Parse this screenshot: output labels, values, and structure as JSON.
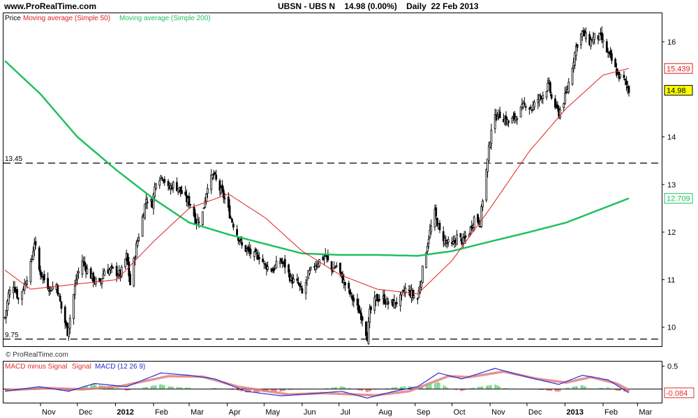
{
  "header": {
    "site": "www.ProRealTime.com",
    "instrument": "UBSN - UBS N",
    "last": "14.98 (0.00%)",
    "period": "Daily",
    "date": "22 Feb 2013"
  },
  "watermark": "© ProRealTime.com",
  "colors": {
    "candle": "#000000",
    "ma50": "#e02020",
    "ma200": "#20c060",
    "macd": "#2a2ad0",
    "signal": "#e08080",
    "hist_pos": "#2cc050",
    "hist_neg": "#e03030",
    "last_badge": "#ffff00"
  },
  "chart_data": {
    "type": "candlestick",
    "legend": {
      "price": "Price",
      "ma50": "Moving average (Simple 50)",
      "ma200": "Moving average (Simple 200)"
    },
    "ylim": [
      9.6,
      16.6
    ],
    "y_ticks": [
      10,
      11,
      12,
      13,
      14,
      16
    ],
    "x_ticks": [
      "Nov",
      "Dec",
      "2012",
      "Feb",
      "Mar",
      "Apr",
      "May",
      "Jun",
      "Jul",
      "Aug",
      "Sep",
      "Oct",
      "Nov",
      "Dec",
      "2013",
      "Feb",
      "Mar"
    ],
    "reference_lines": [
      {
        "value": 13.45,
        "label": "13.45"
      },
      {
        "value": 9.75,
        "label": "9.75"
      }
    ],
    "last_values": {
      "ma50": "15.439",
      "close": "14.98",
      "ma200": "12.709"
    },
    "close_anchors": [
      [
        "2011-10-03",
        10.2
      ],
      [
        "2011-10-06",
        10.7
      ],
      [
        "2011-10-10",
        10.9
      ],
      [
        "2011-10-14",
        10.6
      ],
      [
        "2011-10-19",
        10.9
      ],
      [
        "2011-10-24",
        11.3
      ],
      [
        "2011-10-27",
        11.8
      ],
      [
        "2011-10-31",
        11.2
      ],
      [
        "2011-11-04",
        11.0
      ],
      [
        "2011-11-09",
        10.8
      ],
      [
        "2011-11-14",
        10.9
      ],
      [
        "2011-11-18",
        10.4
      ],
      [
        "2011-11-23",
        9.9
      ],
      [
        "2011-11-25",
        10.2
      ],
      [
        "2011-11-30",
        11.0
      ],
      [
        "2011-12-05",
        11.4
      ],
      [
        "2011-12-09",
        11.2
      ],
      [
        "2011-12-14",
        11.0
      ],
      [
        "2011-12-19",
        10.9
      ],
      [
        "2011-12-23",
        11.2
      ],
      [
        "2011-12-30",
        11.2
      ],
      [
        "2012-01-05",
        11.1
      ],
      [
        "2012-01-10",
        11.5
      ],
      [
        "2012-01-13",
        10.9
      ],
      [
        "2012-01-18",
        11.7
      ],
      [
        "2012-01-23",
        12.3
      ],
      [
        "2012-01-26",
        12.7
      ],
      [
        "2012-01-31",
        12.6
      ],
      [
        "2012-02-03",
        13.1
      ],
      [
        "2012-02-08",
        13.2
      ],
      [
        "2012-02-13",
        12.9
      ],
      [
        "2012-02-17",
        13.0
      ],
      [
        "2012-02-22",
        12.9
      ],
      [
        "2012-02-27",
        12.7
      ],
      [
        "2012-03-02",
        12.6
      ],
      [
        "2012-03-07",
        12.2
      ],
      [
        "2012-03-12",
        12.4
      ],
      [
        "2012-03-16",
        13.0
      ],
      [
        "2012-03-21",
        13.2
      ],
      [
        "2012-03-26",
        12.9
      ],
      [
        "2012-03-30",
        12.7
      ],
      [
        "2012-04-04",
        12.3
      ],
      [
        "2012-04-10",
        11.9
      ],
      [
        "2012-04-13",
        11.7
      ],
      [
        "2012-04-18",
        11.6
      ],
      [
        "2012-04-23",
        11.5
      ],
      [
        "2012-04-27",
        11.5
      ],
      [
        "2012-05-02",
        11.3
      ],
      [
        "2012-05-08",
        11.2
      ],
      [
        "2012-05-14",
        11.4
      ],
      [
        "2012-05-18",
        11.3
      ],
      [
        "2012-05-23",
        11.0
      ],
      [
        "2012-05-29",
        10.9
      ],
      [
        "2012-06-01",
        10.7
      ],
      [
        "2012-06-06",
        11.1
      ],
      [
        "2012-06-11",
        11.3
      ],
      [
        "2012-06-15",
        11.4
      ],
      [
        "2012-06-20",
        11.5
      ],
      [
        "2012-06-25",
        11.2
      ],
      [
        "2012-06-29",
        11.3
      ],
      [
        "2012-07-04",
        11.0
      ],
      [
        "2012-07-10",
        10.7
      ],
      [
        "2012-07-16",
        10.4
      ],
      [
        "2012-07-20",
        10.2
      ],
      [
        "2012-07-24",
        9.8
      ],
      [
        "2012-07-26",
        10.3
      ],
      [
        "2012-07-31",
        10.6
      ],
      [
        "2012-08-06",
        10.6
      ],
      [
        "2012-08-10",
        10.5
      ],
      [
        "2012-08-15",
        10.5
      ],
      [
        "2012-08-20",
        10.6
      ],
      [
        "2012-08-24",
        10.8
      ],
      [
        "2012-08-29",
        10.7
      ],
      [
        "2012-09-03",
        10.6
      ],
      [
        "2012-09-07",
        11.2
      ],
      [
        "2012-09-12",
        11.9
      ],
      [
        "2012-09-17",
        12.4
      ],
      [
        "2012-09-21",
        12.0
      ],
      [
        "2012-09-26",
        11.8
      ],
      [
        "2012-10-01",
        11.7
      ],
      [
        "2012-10-05",
        11.9
      ],
      [
        "2012-10-10",
        11.8
      ],
      [
        "2012-10-15",
        12.0
      ],
      [
        "2012-10-19",
        12.3
      ],
      [
        "2012-10-24",
        12.2
      ],
      [
        "2012-10-26",
        12.7
      ],
      [
        "2012-10-30",
        13.5
      ],
      [
        "2012-11-02",
        14.2
      ],
      [
        "2012-11-07",
        14.5
      ],
      [
        "2012-11-12",
        14.4
      ],
      [
        "2012-11-16",
        14.3
      ],
      [
        "2012-11-21",
        14.4
      ],
      [
        "2012-11-27",
        14.6
      ],
      [
        "2012-11-30",
        14.7
      ],
      [
        "2012-12-05",
        14.6
      ],
      [
        "2012-12-10",
        14.8
      ],
      [
        "2012-12-14",
        14.9
      ],
      [
        "2012-12-19",
        15.1
      ],
      [
        "2012-12-21",
        14.8
      ],
      [
        "2012-12-27",
        14.5
      ],
      [
        "2013-01-02",
        14.9
      ],
      [
        "2013-01-07",
        15.5
      ],
      [
        "2013-01-10",
        15.9
      ],
      [
        "2013-01-15",
        16.2
      ],
      [
        "2013-01-21",
        16.0
      ],
      [
        "2013-01-25",
        16.1
      ],
      [
        "2013-01-30",
        16.1
      ],
      [
        "2013-02-04",
        15.8
      ],
      [
        "2013-02-08",
        15.6
      ],
      [
        "2013-02-13",
        15.3
      ],
      [
        "2013-02-18",
        15.2
      ],
      [
        "2013-02-22",
        14.98
      ]
    ],
    "ma50_anchors": [
      [
        "2011-10-03",
        11.2
      ],
      [
        "2011-10-24",
        10.8
      ],
      [
        "2011-11-28",
        10.9
      ],
      [
        "2012-01-02",
        11.0
      ],
      [
        "2012-02-01",
        11.8
      ],
      [
        "2012-03-01",
        12.5
      ],
      [
        "2012-04-02",
        12.8
      ],
      [
        "2012-05-02",
        12.3
      ],
      [
        "2012-06-01",
        11.6
      ],
      [
        "2012-07-02",
        11.1
      ],
      [
        "2012-08-01",
        10.8
      ],
      [
        "2012-09-03",
        10.7
      ],
      [
        "2012-10-01",
        11.4
      ],
      [
        "2012-11-01",
        12.5
      ],
      [
        "2012-12-03",
        13.7
      ],
      [
        "2013-01-02",
        14.6
      ],
      [
        "2013-02-01",
        15.3
      ],
      [
        "2013-02-22",
        15.44
      ]
    ],
    "ma200_anchors": [
      [
        "2011-10-03",
        15.6
      ],
      [
        "2011-11-01",
        14.9
      ],
      [
        "2011-12-01",
        14.0
      ],
      [
        "2012-01-02",
        13.3
      ],
      [
        "2012-02-01",
        12.7
      ],
      [
        "2012-03-01",
        12.2
      ],
      [
        "2012-04-02",
        11.95
      ],
      [
        "2012-05-02",
        11.75
      ],
      [
        "2012-06-01",
        11.55
      ],
      [
        "2012-07-02",
        11.52
      ],
      [
        "2012-08-01",
        11.52
      ],
      [
        "2012-09-03",
        11.5
      ],
      [
        "2012-10-01",
        11.6
      ],
      [
        "2012-11-01",
        11.8
      ],
      [
        "2012-12-03",
        12.0
      ],
      [
        "2013-01-02",
        12.2
      ],
      [
        "2013-02-01",
        12.5
      ],
      [
        "2013-02-22",
        12.709
      ]
    ],
    "macd_panel": {
      "legend": {
        "hist": "MACD minus Signal",
        "signal": "Signal",
        "macd": "MACD (12 26 9)"
      },
      "ylim": [
        -0.3,
        0.6
      ],
      "y_ticks": [
        0.5
      ],
      "last_value": "-0.084",
      "macd_anchors": [
        [
          "2011-10-03",
          -0.05
        ],
        [
          "2011-10-31",
          0.05
        ],
        [
          "2011-11-24",
          -0.05
        ],
        [
          "2011-12-15",
          0.12
        ],
        [
          "2012-01-10",
          0.05
        ],
        [
          "2012-02-07",
          0.35
        ],
        [
          "2012-03-01",
          0.3
        ],
        [
          "2012-03-22",
          0.22
        ],
        [
          "2012-04-16",
          -0.05
        ],
        [
          "2012-05-15",
          -0.15
        ],
        [
          "2012-06-12",
          -0.1
        ],
        [
          "2012-07-03",
          -0.05
        ],
        [
          "2012-07-24",
          -0.2
        ],
        [
          "2012-08-15",
          -0.05
        ],
        [
          "2012-09-03",
          0.05
        ],
        [
          "2012-09-20",
          0.35
        ],
        [
          "2012-10-09",
          0.22
        ],
        [
          "2012-11-05",
          0.45
        ],
        [
          "2012-12-03",
          0.25
        ],
        [
          "2012-12-27",
          0.1
        ],
        [
          "2013-01-15",
          0.3
        ],
        [
          "2013-02-05",
          0.2
        ],
        [
          "2013-02-22",
          -0.084
        ]
      ],
      "signal_anchors": [
        [
          "2011-10-03",
          -0.03
        ],
        [
          "2011-11-07",
          0.02
        ],
        [
          "2011-12-05",
          -0.01
        ],
        [
          "2012-01-05",
          0.06
        ],
        [
          "2012-02-13",
          0.28
        ],
        [
          "2012-03-12",
          0.27
        ],
        [
          "2012-04-10",
          0.05
        ],
        [
          "2012-05-21",
          -0.12
        ],
        [
          "2012-06-18",
          -0.09
        ],
        [
          "2012-07-30",
          -0.14
        ],
        [
          "2012-08-27",
          -0.05
        ],
        [
          "2012-09-28",
          0.28
        ],
        [
          "2012-10-15",
          0.26
        ],
        [
          "2012-11-12",
          0.38
        ],
        [
          "2012-12-10",
          0.22
        ],
        [
          "2013-01-02",
          0.14
        ],
        [
          "2013-01-22",
          0.26
        ],
        [
          "2013-02-12",
          0.12
        ],
        [
          "2013-02-22",
          -0.02
        ]
      ]
    }
  }
}
